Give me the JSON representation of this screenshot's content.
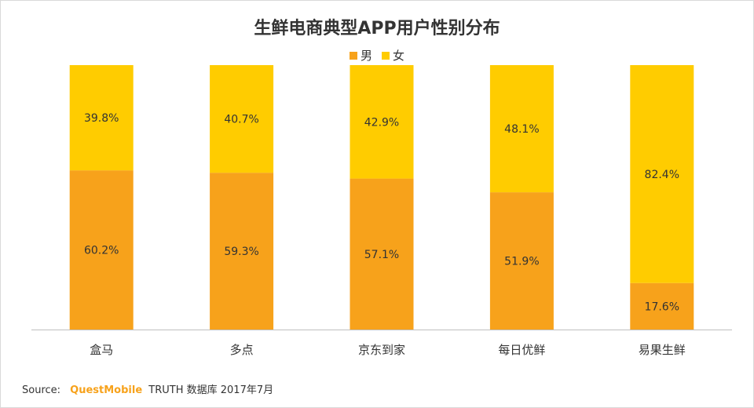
{
  "chart_data": {
    "type": "bar",
    "stacked": true,
    "title": "生鲜电商典型APP用户性别分布",
    "categories": [
      "盒马",
      "多点",
      "京东到家",
      "每日优鲜",
      "易果生鲜"
    ],
    "series": [
      {
        "name": "男",
        "color": "#f7a21b",
        "values": [
          60.2,
          59.3,
          57.1,
          51.9,
          17.6
        ]
      },
      {
        "name": "女",
        "color": "#ffcc00",
        "values": [
          39.8,
          40.7,
          42.9,
          48.1,
          82.4
        ]
      }
    ],
    "value_suffix": "%",
    "ylim": [
      0,
      100
    ],
    "legend_position": "top-center",
    "grid": false
  },
  "footer": {
    "source_label": "Source:",
    "brand": "QuestMobile",
    "rest": "TRUTH 数据库 2017年7月"
  }
}
